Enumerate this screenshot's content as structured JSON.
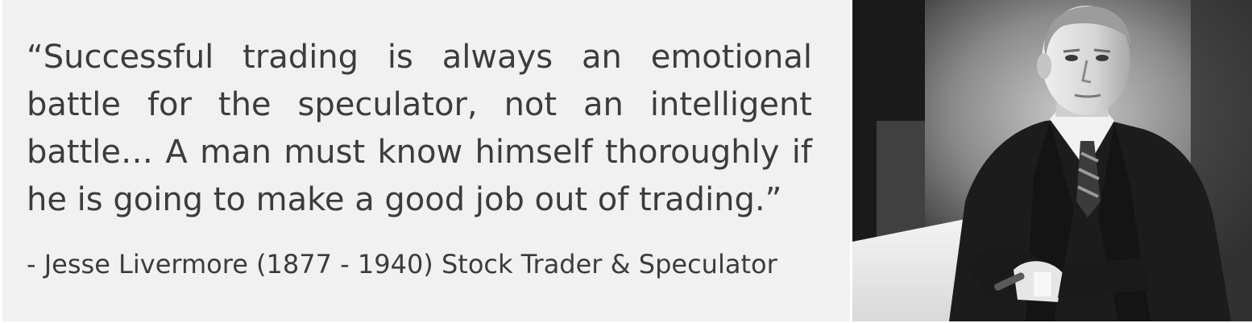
{
  "quote": {
    "text": "“Successful trading is always an emotional battle for the speculator, not an intelligent battle… A man must know himself thoroughly if he is going to make a good job out of trading.”",
    "attribution": "- Jesse Livermore (1877 - 1940) Stock Trader & Speculator"
  },
  "photo": {
    "subject": "black-and-white portrait of a man in a dark suit seated at a desk holding a cigar"
  },
  "colors": {
    "panel_background": "#f1f1f1",
    "text": "#3c3c3c"
  }
}
